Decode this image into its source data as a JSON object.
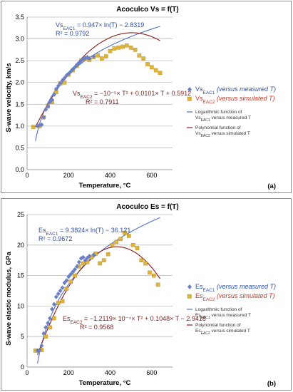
{
  "chart_data": [
    {
      "type": "scatter",
      "panel_label": "(a)",
      "title": "Acoculco Vs = f(T)",
      "xlabel": "Temperature, °C",
      "ylabel": "S-wave velocity, km/s",
      "xlim": [
        0,
        700
      ],
      "ylim": [
        0,
        3.5
      ],
      "xticks": [
        0,
        200,
        400,
        600
      ],
      "yticks": [
        0.0,
        0.5,
        1.0,
        1.5,
        2.0,
        2.5,
        3.0,
        3.5
      ],
      "ytick_labels": [
        "0.0",
        "0.5",
        "1.0",
        "1.5",
        "2.0",
        "2.5",
        "3.0",
        "3.5"
      ],
      "grid": "horizontal",
      "legend_position": "right",
      "series": [
        {
          "name_main": "Vs",
          "name_sub": "EAC1",
          "name_note": "(versus measured T)",
          "marker": "diamond",
          "color": "#6a7fc8",
          "points": [
            [
              50,
              1.0
            ],
            [
              60,
              1.02
            ],
            [
              70,
              1.03
            ],
            [
              80,
              1.2
            ],
            [
              90,
              1.38
            ],
            [
              100,
              1.45
            ],
            [
              110,
              1.55
            ],
            [
              120,
              1.6
            ],
            [
              130,
              1.72
            ],
            [
              140,
              1.85
            ],
            [
              150,
              1.92
            ],
            [
              160,
              1.98
            ],
            [
              170,
              2.05
            ],
            [
              180,
              2.1
            ],
            [
              190,
              2.16
            ],
            [
              200,
              2.2
            ],
            [
              210,
              2.25
            ],
            [
              220,
              2.3
            ],
            [
              230,
              2.35
            ],
            [
              240,
              2.4
            ],
            [
              250,
              2.45
            ],
            [
              260,
              2.5
            ],
            [
              270,
              2.54
            ],
            [
              280,
              2.56
            ],
            [
              290,
              2.58
            ],
            [
              300,
              2.55
            ],
            [
              320,
              2.6
            ]
          ]
        },
        {
          "name_main": "Vs",
          "name_sub": "EAC2",
          "name_note": "(versus simulated T)",
          "marker": "square",
          "color": "#e0b43a",
          "points": [
            [
              30,
              0.98
            ],
            [
              60,
              1.0
            ],
            [
              80,
              1.2
            ],
            [
              100,
              1.45
            ],
            [
              120,
              1.55
            ],
            [
              140,
              1.78
            ],
            [
              160,
              1.98
            ],
            [
              180,
              2.0
            ],
            [
              200,
              2.18
            ],
            [
              220,
              2.28
            ],
            [
              240,
              2.38
            ],
            [
              260,
              2.5
            ],
            [
              280,
              2.55
            ],
            [
              300,
              2.52
            ],
            [
              320,
              2.58
            ],
            [
              340,
              2.62
            ],
            [
              360,
              2.55
            ],
            [
              380,
              2.6
            ],
            [
              400,
              2.72
            ],
            [
              420,
              2.78
            ],
            [
              440,
              2.8
            ],
            [
              460,
              2.82
            ],
            [
              480,
              2.85
            ],
            [
              500,
              2.8
            ],
            [
              520,
              2.75
            ],
            [
              540,
              2.62
            ],
            [
              560,
              2.55
            ],
            [
              580,
              2.42
            ],
            [
              600,
              2.35
            ],
            [
              620,
              2.28
            ],
            [
              640,
              2.22
            ]
          ]
        }
      ],
      "fits": [
        {
          "name_line1": "Logarithmic function of",
          "name_main": "Vs",
          "name_sub": "EAC1",
          "name_tail": " versus measured T",
          "kind": "log",
          "a": 0.947,
          "b": -2.8319,
          "domain": [
            40,
            640
          ],
          "color": "#5470c8",
          "eq_prefix": "Vs",
          "eq_sub": "EAC1",
          "eq_text": " = 0.947× ln(T) − 2.8319",
          "r2": "R² = 0.9792"
        },
        {
          "name_line1": "Polynomial function of",
          "name_main": "Vs",
          "name_sub": "EAC2",
          "name_tail": " versus simulated T",
          "kind": "poly2",
          "a": -1e-05,
          "b": 0.0101,
          "c": 0.5912,
          "domain": [
            40,
            640
          ],
          "color": "#8b1a1a",
          "eq_prefix": "Vs",
          "eq_sub": "EAC2",
          "eq_text": " = −10⁻⁵× T² + 0.0101× T + 0.5912",
          "r2": "R² = 0.7911"
        }
      ]
    },
    {
      "type": "scatter",
      "panel_label": "(b)",
      "title": "Acoculco Es = f(T)",
      "xlabel": "Temperature, °C",
      "ylabel": "S-wave elastic modulus, GPa",
      "xlim": [
        0,
        700
      ],
      "ylim": [
        0,
        25
      ],
      "xticks": [
        0,
        200,
        400,
        600
      ],
      "yticks": [
        0,
        5,
        10,
        15,
        20,
        25
      ],
      "ytick_labels": [
        "0",
        "5",
        "10",
        "15",
        "20",
        "25"
      ],
      "grid": "horizontal",
      "legend_position": "right",
      "series": [
        {
          "name_main": "Es",
          "name_sub": "EAC1",
          "name_note": "(versus measured T)",
          "marker": "diamond",
          "color": "#6a7fc8",
          "points": [
            [
              50,
              2.7
            ],
            [
              60,
              2.8
            ],
            [
              70,
              3.5
            ],
            [
              80,
              5.5
            ],
            [
              90,
              6.5
            ],
            [
              100,
              7.2
            ],
            [
              110,
              8.0
            ],
            [
              120,
              9.5
            ],
            [
              130,
              10.3
            ],
            [
              140,
              11.5
            ],
            [
              150,
              12.0
            ],
            [
              160,
              12.5
            ],
            [
              170,
              13.0
            ],
            [
              180,
              13.8
            ],
            [
              190,
              14.2
            ],
            [
              200,
              14.8
            ],
            [
              210,
              15.2
            ],
            [
              220,
              15.6
            ],
            [
              230,
              16.0
            ],
            [
              240,
              16.5
            ],
            [
              250,
              17.2
            ],
            [
              260,
              17.8
            ],
            [
              270,
              18.0
            ],
            [
              280,
              17.5
            ],
            [
              290,
              17.9
            ],
            [
              300,
              18.2
            ],
            [
              320,
              18.4
            ]
          ]
        },
        {
          "name_main": "Es",
          "name_sub": "EAC2",
          "name_note": "(versus simulated T)",
          "marker": "square",
          "color": "#e0b43a",
          "points": [
            [
              40,
              2.7
            ],
            [
              70,
              2.8
            ],
            [
              90,
              5.0
            ],
            [
              110,
              6.5
            ],
            [
              130,
              8.0
            ],
            [
              150,
              10.5
            ],
            [
              170,
              10.8
            ],
            [
              190,
              12.8
            ],
            [
              210,
              14.0
            ],
            [
              230,
              15.0
            ],
            [
              250,
              16.5
            ],
            [
              270,
              17.0
            ],
            [
              290,
              17.2
            ],
            [
              310,
              18.0
            ],
            [
              330,
              18.6
            ],
            [
              350,
              17.0
            ],
            [
              370,
              17.5
            ],
            [
              390,
              18.5
            ],
            [
              410,
              20.0
            ],
            [
              430,
              20.5
            ],
            [
              450,
              21.0
            ],
            [
              470,
              22.0
            ],
            [
              490,
              21.5
            ],
            [
              510,
              20.0
            ],
            [
              530,
              19.5
            ],
            [
              550,
              17.5
            ],
            [
              570,
              17.0
            ],
            [
              590,
              15.5
            ],
            [
              610,
              15.0
            ],
            [
              630,
              13.5
            ]
          ]
        }
      ],
      "fits": [
        {
          "name_line1": "Logarithmic function of",
          "name_main": "Es",
          "name_sub": "EAC1",
          "name_tail": " versus measured T",
          "kind": "log",
          "a": 9.3824,
          "b": -36.121,
          "domain": [
            50,
            640
          ],
          "color": "#5470c8",
          "eq_prefix": "Es",
          "eq_sub": "EAC1",
          "eq_text": " = 9.3824× ln(T) − 36.121",
          "r2": "R² = 0.9672"
        },
        {
          "name_line1": "Polynomial function of",
          "name_main": "Es",
          "name_sub": "EAC2",
          "name_tail": " versus simulated T",
          "kind": "poly2",
          "a": -0.00012119,
          "b": 0.1048,
          "c": -2.9418,
          "domain": [
            50,
            640
          ],
          "color": "#8b1a1a",
          "eq_prefix": "Es",
          "eq_sub": "EAC2",
          "eq_text": " = −1.2119× 10⁻⁴× T² + 0.1048× T − 2.9418",
          "r2": "R² = 0.9568"
        }
      ]
    }
  ]
}
